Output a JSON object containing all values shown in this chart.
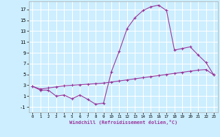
{
  "xlabel": "Windchill (Refroidissement éolien,°C)",
  "background_color": "#cceeff",
  "grid_color": "#ffffff",
  "line_color": "#993399",
  "xlim": [
    -0.5,
    23.5
  ],
  "ylim": [
    -2.0,
    18.5
  ],
  "yticks": [
    -1,
    1,
    3,
    5,
    7,
    9,
    11,
    13,
    15,
    17
  ],
  "xticks": [
    0,
    1,
    2,
    3,
    4,
    5,
    6,
    7,
    8,
    9,
    10,
    11,
    12,
    13,
    14,
    15,
    16,
    17,
    18,
    19,
    20,
    21,
    22,
    23
  ],
  "hours": [
    0,
    1,
    2,
    3,
    4,
    5,
    6,
    7,
    8,
    9,
    10,
    11,
    12,
    13,
    14,
    15,
    16,
    17,
    18,
    19,
    20,
    21,
    22,
    23
  ],
  "windchill": [
    2.8,
    2.1,
    2.1,
    1.0,
    1.2,
    0.5,
    1.2,
    0.4,
    -0.5,
    -0.3,
    5.5,
    9.3,
    13.5,
    15.5,
    16.8,
    17.5,
    17.8,
    16.8,
    9.5,
    9.8,
    10.1,
    8.6,
    7.2,
    4.9
  ],
  "reference": [
    2.8,
    2.3,
    2.5,
    2.7,
    2.9,
    3.0,
    3.1,
    3.2,
    3.3,
    3.4,
    3.6,
    3.8,
    4.0,
    4.2,
    4.4,
    4.6,
    4.8,
    5.0,
    5.2,
    5.4,
    5.6,
    5.8,
    5.9,
    4.9
  ]
}
